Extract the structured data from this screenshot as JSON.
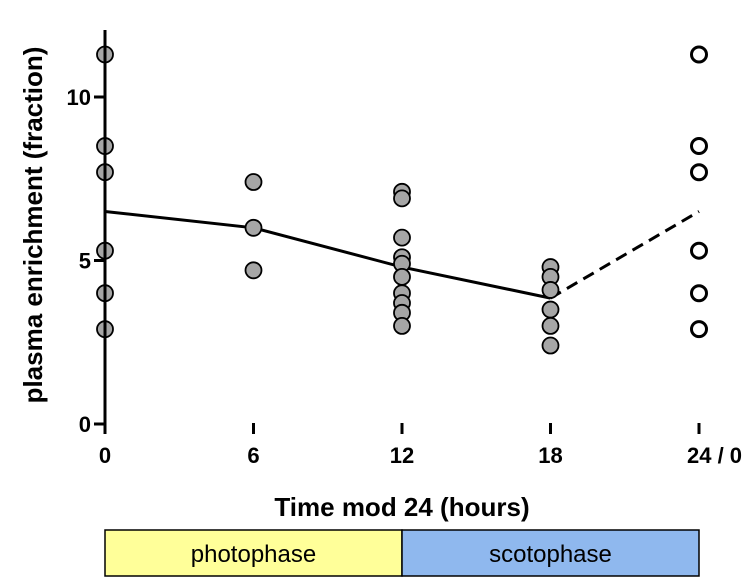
{
  "chart_data": {
    "type": "scatter",
    "xlabel": "Time mod 24 (hours)",
    "ylabel": "plasma enrichment (fraction)",
    "xlim": [
      0,
      24
    ],
    "ylim": [
      0,
      12
    ],
    "x_ticks": [
      0,
      6,
      12,
      18,
      24
    ],
    "x_tick_labels": [
      "0",
      "6",
      "12",
      "18",
      "24 / 0"
    ],
    "y_ticks": [
      0,
      5,
      10
    ],
    "y_tick_labels": [
      "0",
      "5",
      "10"
    ],
    "grid": false,
    "series": [
      {
        "marker": "filled-circle",
        "color": "#a6a6a6",
        "points": [
          [
            0,
            11.3
          ],
          [
            0,
            8.5
          ],
          [
            0,
            7.7
          ],
          [
            0,
            5.3
          ],
          [
            0,
            4.0
          ],
          [
            0,
            2.9
          ],
          [
            6,
            7.4
          ],
          [
            6,
            6.0
          ],
          [
            6,
            4.7
          ],
          [
            12,
            7.1
          ],
          [
            12,
            6.9
          ],
          [
            12,
            5.7
          ],
          [
            12,
            5.1
          ],
          [
            12,
            4.9
          ],
          [
            12,
            4.5
          ],
          [
            12,
            4.0
          ],
          [
            12,
            3.7
          ],
          [
            12,
            3.4
          ],
          [
            12,
            3.0
          ],
          [
            18,
            4.8
          ],
          [
            18,
            4.5
          ],
          [
            18,
            4.1
          ],
          [
            18,
            3.5
          ],
          [
            18,
            3.0
          ],
          [
            18,
            2.4
          ]
        ]
      },
      {
        "marker": "open-circle",
        "color": "#000000",
        "points": [
          [
            24,
            11.3
          ],
          [
            24,
            8.5
          ],
          [
            24,
            7.7
          ],
          [
            24,
            5.3
          ],
          [
            24,
            4.0
          ],
          [
            24,
            2.9
          ]
        ]
      }
    ],
    "trend_line": {
      "style": "solid",
      "points": [
        [
          0,
          6.5
        ],
        [
          6,
          6.0
        ],
        [
          12,
          4.8
        ],
        [
          18,
          3.85
        ]
      ]
    },
    "trend_line_extension": {
      "style": "dashed",
      "points": [
        [
          18,
          3.85
        ],
        [
          24,
          6.5
        ]
      ]
    },
    "phase_bar": [
      {
        "label": "photophase",
        "from": 0,
        "to": 12,
        "color": "#ffff99"
      },
      {
        "label": "scotophase",
        "from": 12,
        "to": 24,
        "color": "#8fb8ee"
      }
    ]
  }
}
